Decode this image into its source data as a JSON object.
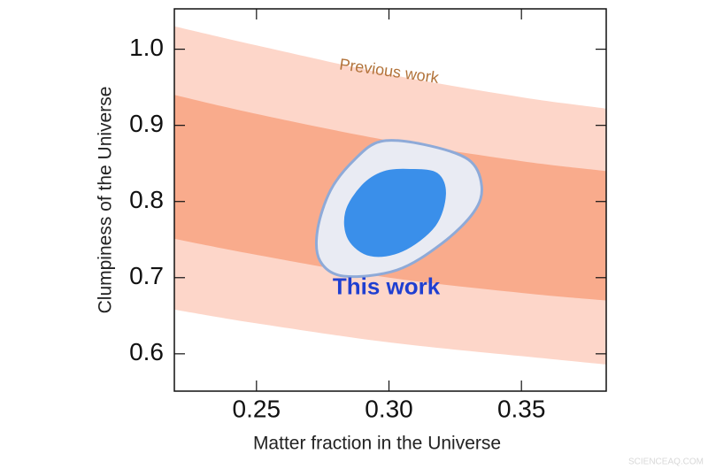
{
  "chart_data": {
    "type": "constraint",
    "xlabel": "Matter fraction in the Universe",
    "ylabel": "Clumpiness of the Universe",
    "xlim": [
      0.219,
      0.382
    ],
    "ylim": [
      0.551,
      1.053
    ],
    "xticks": [
      0.25,
      {
        "value": 0.3,
        "label": "0.30"
      },
      0.35
    ],
    "yticks": [
      0.6,
      0.7,
      0.8,
      0.9,
      {
        "value": 1.0,
        "label": "1.0"
      }
    ],
    "bands": [
      {
        "color": "#fdd6c9",
        "x": [
          0.219,
          0.25,
          0.3,
          0.35,
          0.382
        ],
        "lower": [
          0.658,
          0.64,
          0.615,
          0.597,
          0.586
        ],
        "upper": [
          1.03,
          1.005,
          0.967,
          0.937,
          0.922
        ]
      },
      {
        "color": "#f9ab8c",
        "x": [
          0.219,
          0.25,
          0.3,
          0.35,
          0.382
        ],
        "lower": [
          0.751,
          0.73,
          0.7,
          0.68,
          0.67
        ],
        "upper": [
          0.94,
          0.915,
          0.88,
          0.853,
          0.84
        ]
      }
    ],
    "contours": [
      {
        "color": "#e9ebf3",
        "stroke": "#8eaad8",
        "x": [
          0.297,
          0.313,
          0.33,
          0.335,
          0.332,
          0.32,
          0.303,
          0.283,
          0.274,
          0.273,
          0.278,
          0.287
        ],
        "y": [
          0.879,
          0.875,
          0.855,
          0.82,
          0.786,
          0.745,
          0.71,
          0.702,
          0.722,
          0.762,
          0.815,
          0.855
        ]
      },
      {
        "color": "#3a8fea",
        "stroke": "#3a8fea",
        "x": [
          0.308,
          0.318,
          0.321,
          0.317,
          0.305,
          0.293,
          0.285,
          0.284,
          0.29,
          0.298
        ],
        "y": [
          0.841,
          0.836,
          0.809,
          0.768,
          0.736,
          0.73,
          0.751,
          0.786,
          0.82,
          0.838
        ]
      }
    ],
    "annotations": [
      {
        "text": "Previous work",
        "x": 0.3,
        "y": 0.97,
        "color": "#b2733a",
        "rotation": 8
      },
      {
        "text": "This work",
        "x": 0.299,
        "y": 0.686,
        "color": "#1f3fd1",
        "rotation": 0
      }
    ],
    "watermark": "SCIENCEAQ.COM"
  }
}
